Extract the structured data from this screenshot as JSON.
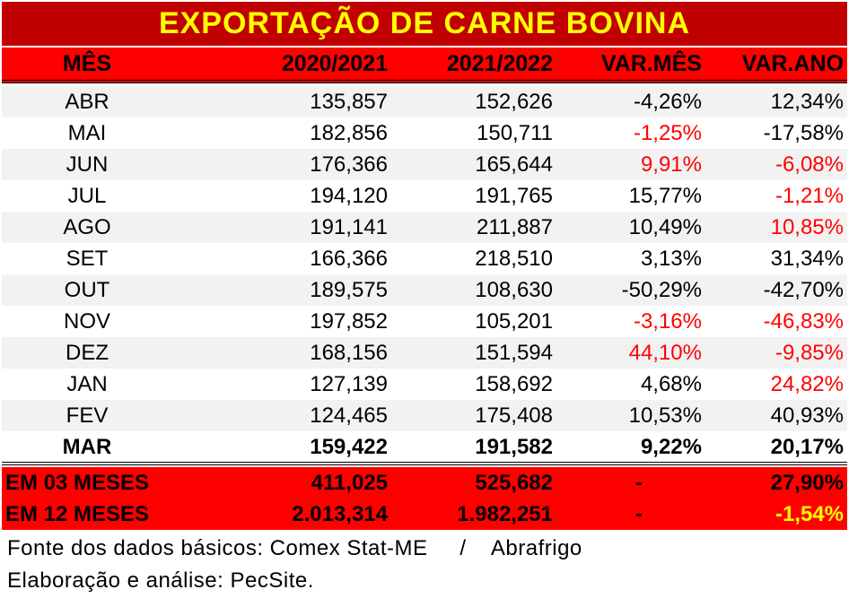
{
  "title": "EXPORTAÇÃO DE CARNE BOVINA",
  "headers": {
    "mes": "MÊS",
    "a": "2020/2021",
    "b": "2021/2022",
    "var_mes": "VAR.MÊS",
    "var_ano": "VAR.ANO"
  },
  "rows": [
    {
      "mes": "ABR",
      "a": "135,857",
      "b": "152,626",
      "var_mes": "-4,26%",
      "var_ano": "12,34%"
    },
    {
      "mes": "MAI",
      "a": "182,856",
      "b": "150,711",
      "var_mes": "-1,25%",
      "var_ano": "-17,58%"
    },
    {
      "mes": "JUN",
      "a": "176,366",
      "b": "165,644",
      "var_mes": "9,91%",
      "var_ano": "-6,08%"
    },
    {
      "mes": "JUL",
      "a": "194,120",
      "b": "191,765",
      "var_mes": "15,77%",
      "var_ano": "-1,21%"
    },
    {
      "mes": "AGO",
      "a": "191,141",
      "b": "211,887",
      "var_mes": "10,49%",
      "var_ano": "10,85%"
    },
    {
      "mes": "SET",
      "a": "166,366",
      "b": "218,510",
      "var_mes": "3,13%",
      "var_ano": "31,34%"
    },
    {
      "mes": "OUT",
      "a": "189,575",
      "b": "108,630",
      "var_mes": "-50,29%",
      "var_ano": "-42,70%"
    },
    {
      "mes": "NOV",
      "a": "197,852",
      "b": "105,201",
      "var_mes": "-3,16%",
      "var_ano": "-46,83%"
    },
    {
      "mes": "DEZ",
      "a": "168,156",
      "b": "151,594",
      "var_mes": "44,10%",
      "var_ano": "-9,85%"
    },
    {
      "mes": "JAN",
      "a": "127,139",
      "b": "158,692",
      "var_mes": "4,68%",
      "var_ano": "24,82%"
    },
    {
      "mes": "FEV",
      "a": "124,465",
      "b": "175,408",
      "var_mes": "10,53%",
      "var_ano": "40,93%"
    },
    {
      "mes": "MAR",
      "a": "159,422",
      "b": "191,582",
      "var_mes": "9,22%",
      "var_ano": "20,17%"
    }
  ],
  "totals": [
    {
      "label": "EM 03 MESES",
      "a": "411,025",
      "b": "525,682",
      "var_mes": "-",
      "var_ano": "27,90%"
    },
    {
      "label": "EM 12 MESES",
      "a": "2.013,314",
      "b": "1.982,251",
      "var_mes": "-",
      "var_ano": "-1,54%"
    }
  ],
  "footer": {
    "source": "Fonte dos dados básicos: Comex Stat-ME     /    Abrafrigo",
    "credit": "Elaboração e análise: PecSite."
  },
  "colors": {
    "title_bg": "#c00000",
    "title_text": "#ffff00",
    "header_bg": "#ff0000",
    "negative_highlight": "#ff0000",
    "total_highlight": "#ffff00"
  }
}
